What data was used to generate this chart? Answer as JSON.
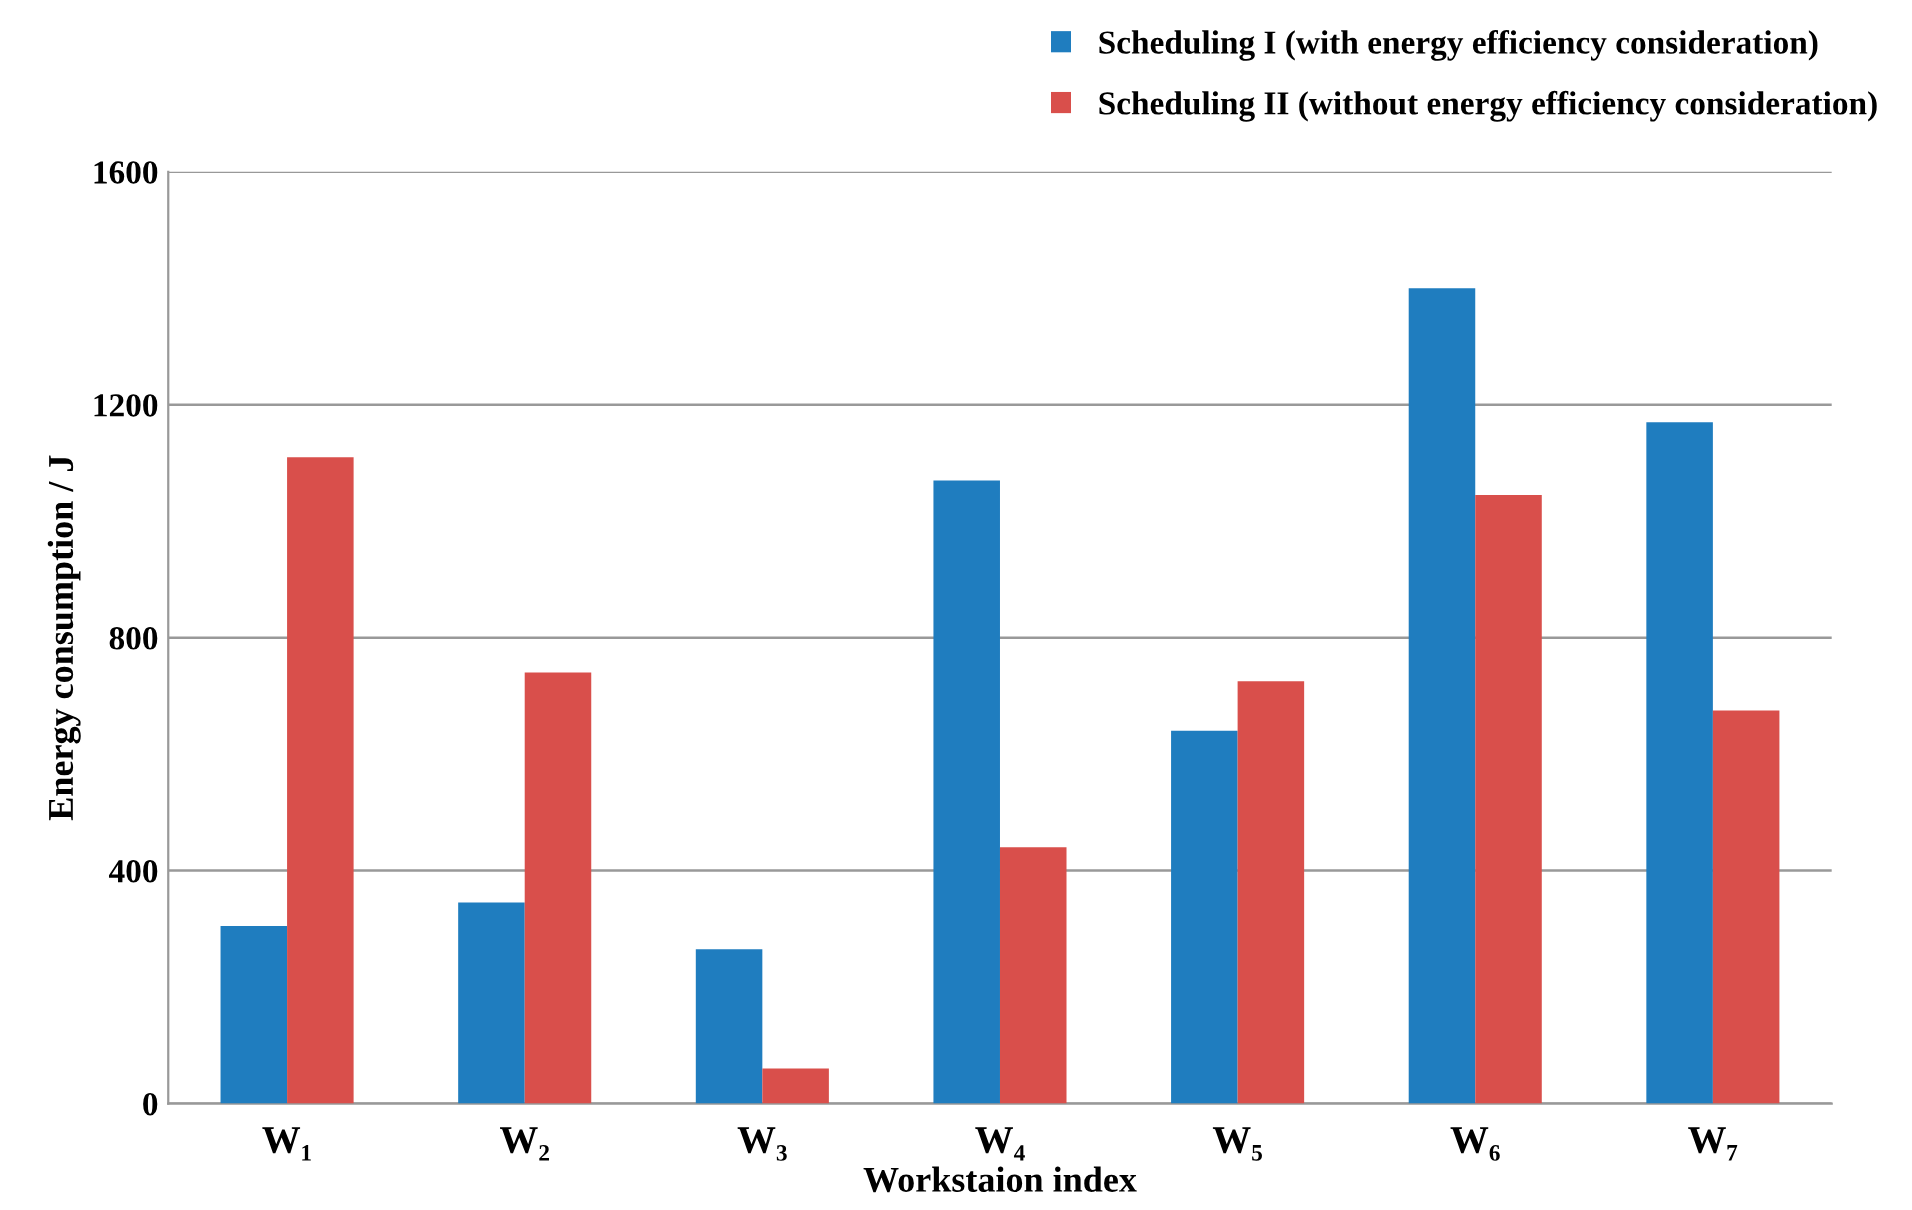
{
  "chart_data": {
    "type": "bar",
    "xlabel": "Workstaion index",
    "ylabel": "Energy consumption / J",
    "categories": [
      "W₁",
      "W₂",
      "W₃",
      "W₄",
      "W₅",
      "W₆",
      "W₇"
    ],
    "series": [
      {
        "name": "Scheduling I (with energy efficiency consideration)",
        "color": "#1f7dbf",
        "values": [
          305,
          345,
          265,
          1070,
          640,
          1400,
          1170
        ]
      },
      {
        "name": "Scheduling II (without energy efficiency consideration)",
        "color": "#d94f4b",
        "values": [
          1110,
          740,
          60,
          440,
          725,
          1045,
          675
        ]
      }
    ],
    "ylim": [
      0,
      1600
    ],
    "yticks": [
      0,
      400,
      800,
      1200,
      1600
    ],
    "grid": "y",
    "legend": "top right"
  }
}
